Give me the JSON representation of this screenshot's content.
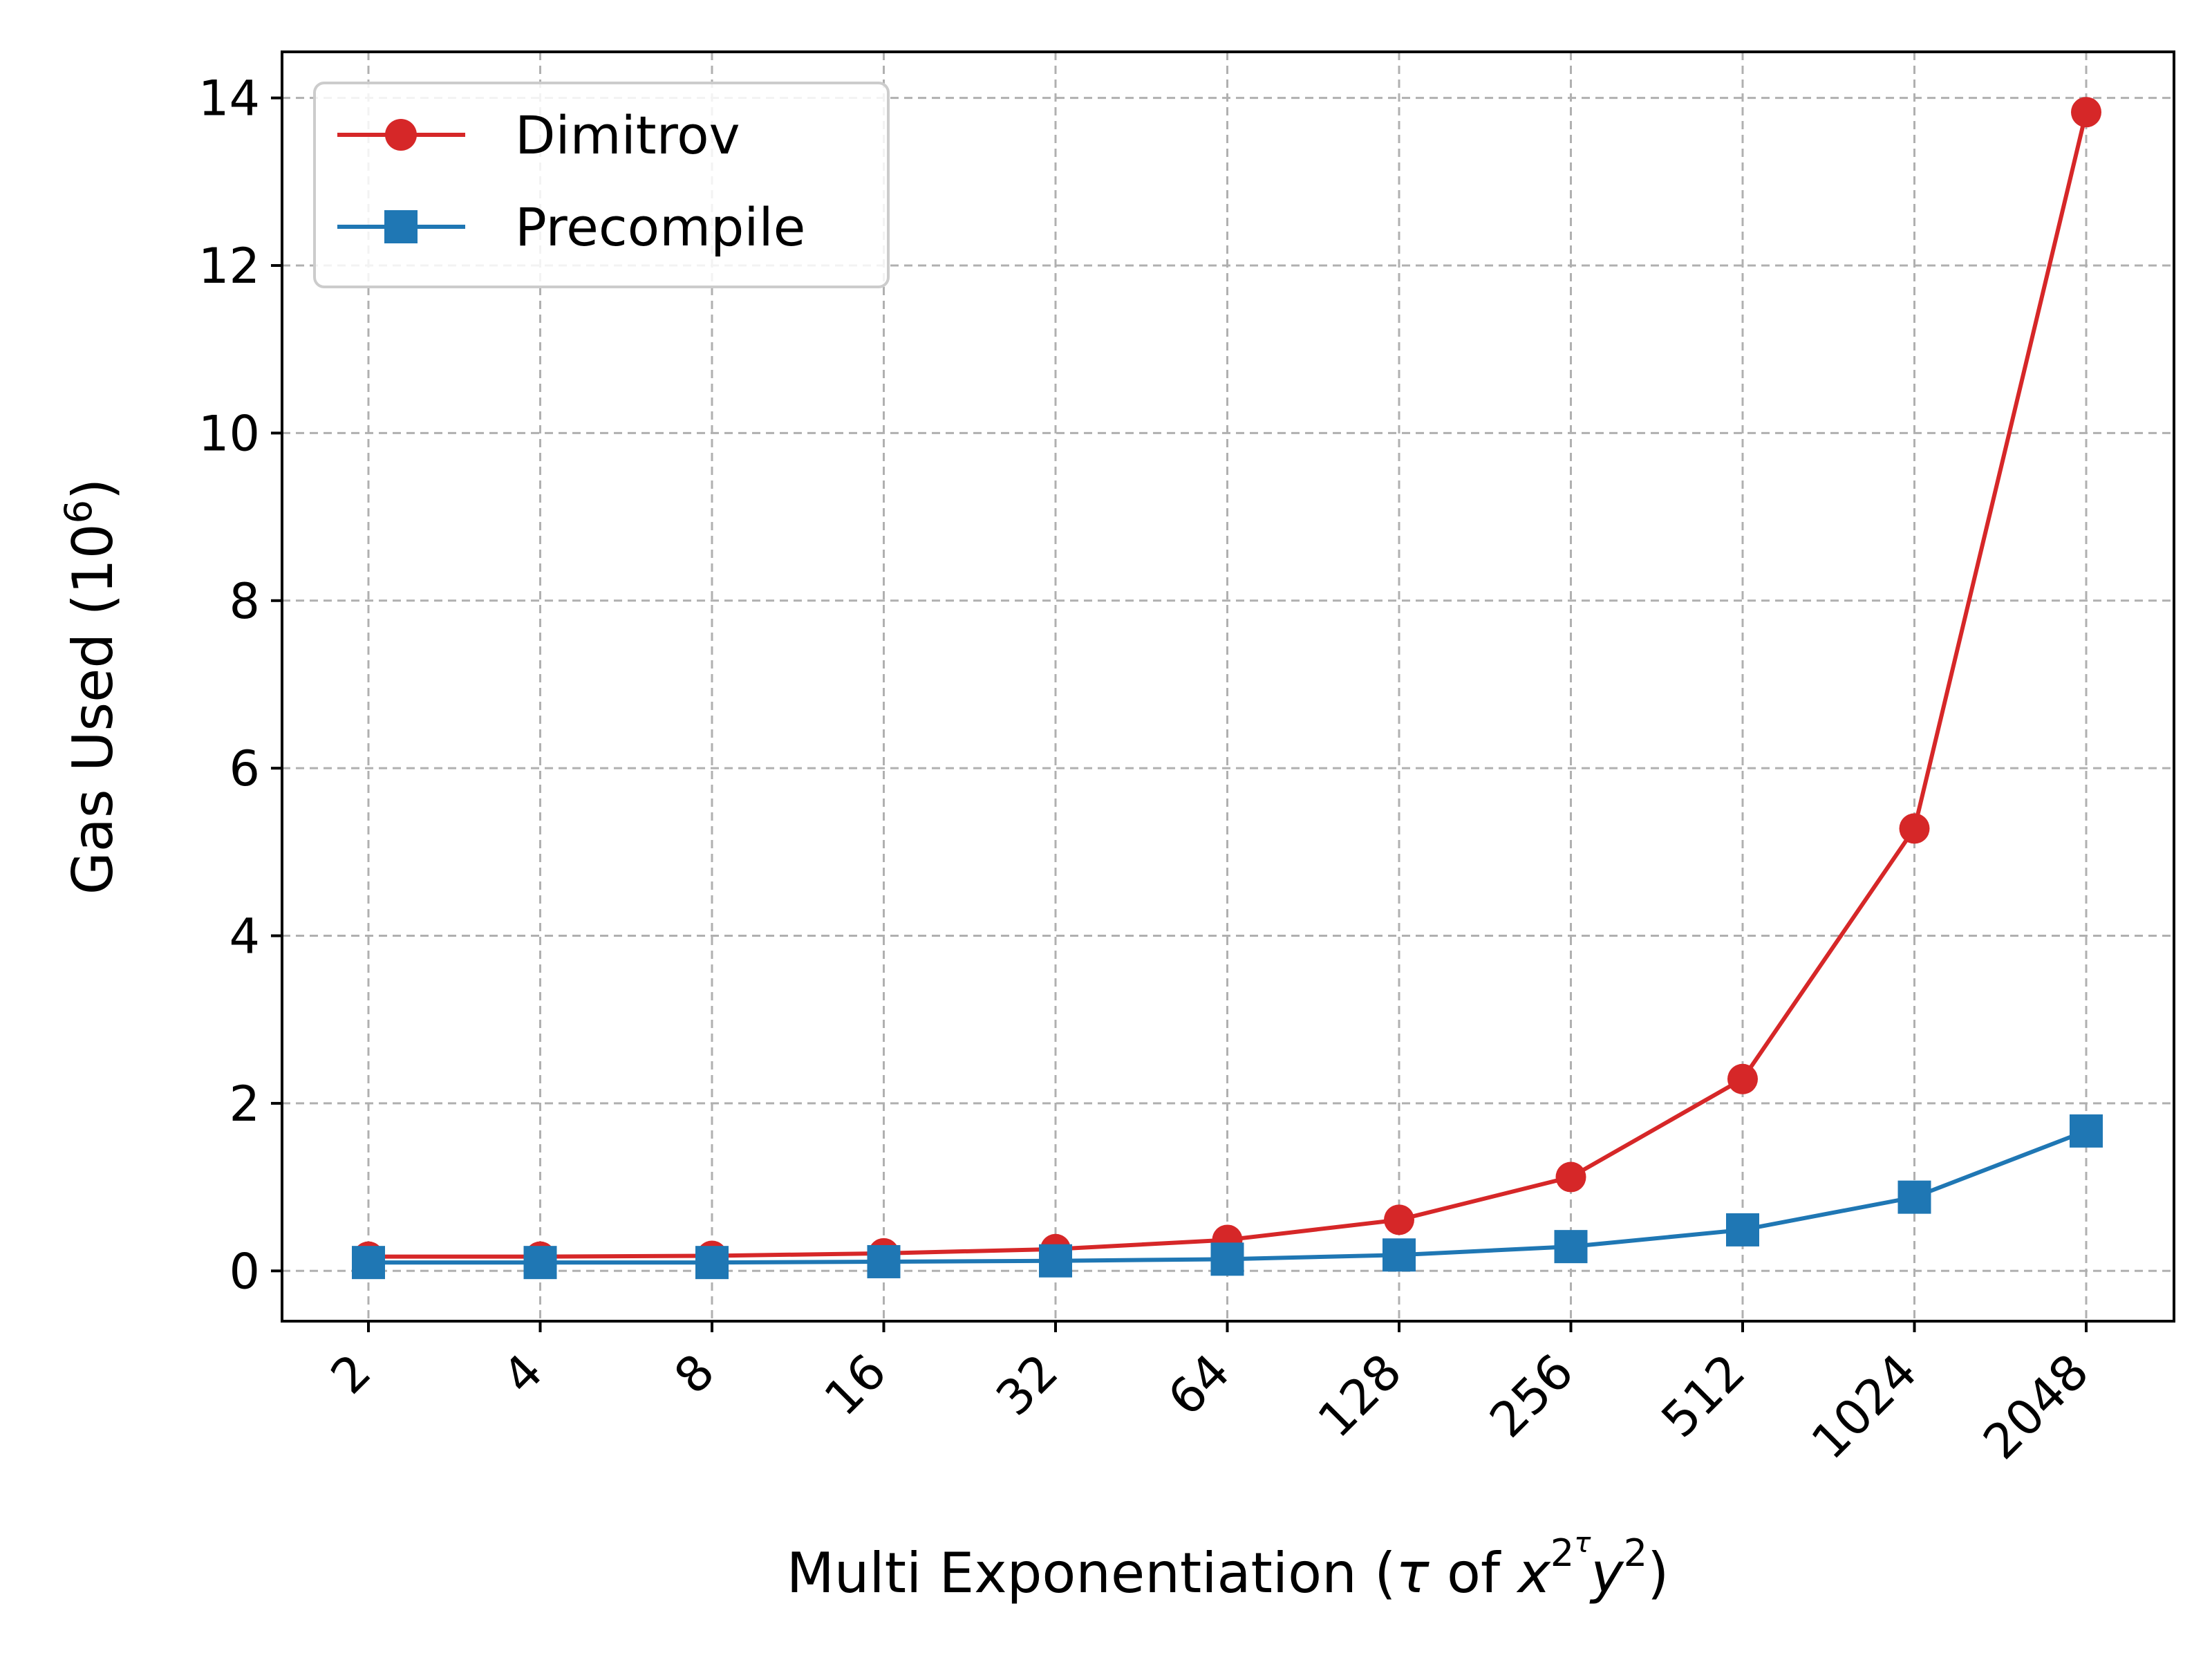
{
  "chart_data": {
    "type": "line",
    "x": [
      2,
      4,
      8,
      16,
      32,
      64,
      128,
      256,
      512,
      1024,
      2048
    ],
    "x_ticks": [
      "2",
      "4",
      "8",
      "16",
      "32",
      "64",
      "128",
      "256",
      "512",
      "1024",
      "2048"
    ],
    "y_ticks": [
      "0",
      "2",
      "4",
      "6",
      "8",
      "10",
      "12",
      "14"
    ],
    "ylim": [
      -0.6,
      14.55
    ],
    "xscale": "log2",
    "grid": true,
    "legend_position": "top-left",
    "xlabel": {
      "prefix": "Multi Exponentiation (",
      "tau": "τ",
      "of": " of ",
      "x": "x",
      "x_sup_base": "2",
      "x_sup_sup": "τ",
      "y": "y",
      "y_sup": "2",
      "suffix": ")"
    },
    "ylabel": {
      "text": "Gas Used (10",
      "sup": "6",
      "suffix": ")"
    },
    "series": [
      {
        "name": "Dimitrov",
        "color": "#d62728",
        "marker": "circle",
        "values": [
          0.17,
          0.17,
          0.18,
          0.21,
          0.26,
          0.37,
          0.61,
          1.12,
          2.29,
          5.28,
          13.83
        ]
      },
      {
        "name": "Precompile",
        "color": "#1f77b4",
        "marker": "square",
        "values": [
          0.1,
          0.1,
          0.1,
          0.11,
          0.12,
          0.14,
          0.19,
          0.29,
          0.49,
          0.88,
          1.67
        ]
      }
    ]
  }
}
